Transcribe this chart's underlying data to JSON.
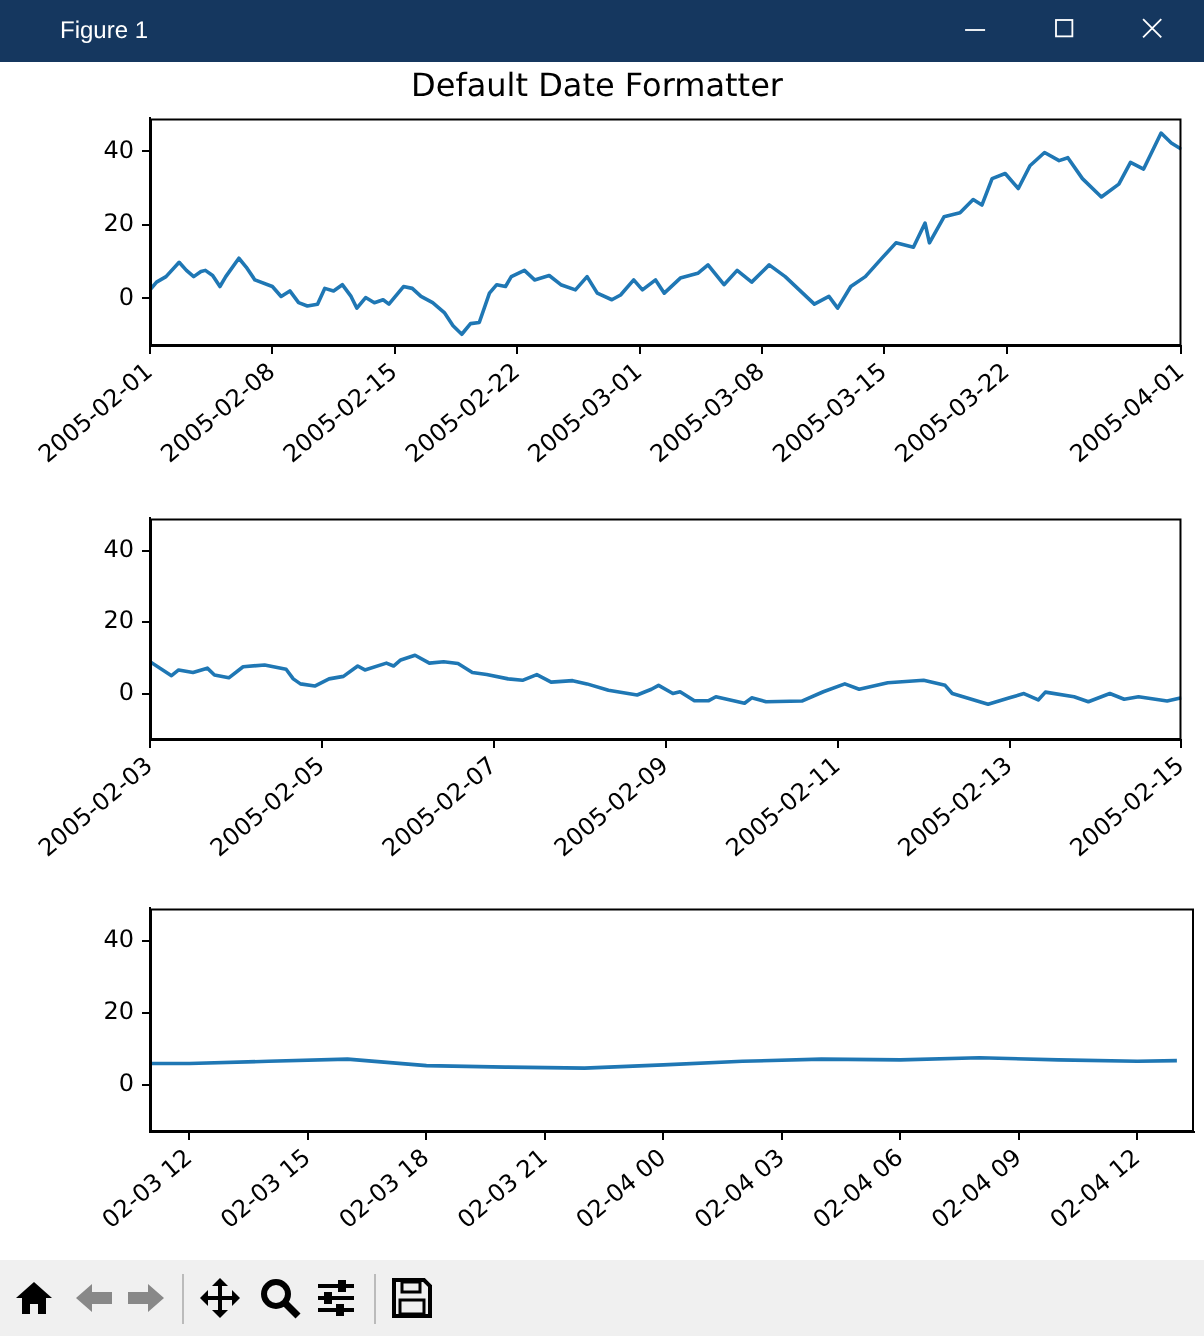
{
  "chart_data": [
    {
      "type": "line",
      "title": "Default Date Formatter",
      "annotations": [
        "Figure 1"
      ],
      "x": [
        "2005-02-01T00:00",
        "2005-02-01T09:00",
        "2005-02-01T22:00",
        "2005-02-02T16:00",
        "2005-02-03T02:00",
        "2005-02-03T12:00",
        "2005-02-03T22:00",
        "2005-02-04T04:00",
        "2005-02-04T14:00",
        "2005-02-05T00:00",
        "2005-02-05T08:00",
        "2005-02-06T02:00",
        "2005-02-06T12:00",
        "2005-02-07T00:00",
        "2005-02-08T00:00",
        "2005-02-08T12:00",
        "2005-02-09T00:00",
        "2005-02-09T12:00",
        "2005-02-10T00:00",
        "2005-02-10T14:00",
        "2005-02-11T00:00",
        "2005-02-11T12:00",
        "2005-02-12T00:00",
        "2005-02-12T12:00",
        "2005-02-12T20:00",
        "2005-02-13T08:00",
        "2005-02-13T20:00",
        "2005-02-14T08:00",
        "2005-02-14T16:00",
        "2005-02-15T12:00",
        "2005-02-16T00:00",
        "2005-02-16T12:00",
        "2005-02-17T04:00",
        "2005-02-17T20:00",
        "2005-02-18T08:00",
        "2005-02-18T20:00",
        "2005-02-19T08:00",
        "2005-02-19T20:00",
        "2005-02-20T10:00",
        "2005-02-20T20:00",
        "2005-02-21T08:00",
        "2005-02-21T16:00",
        "2005-02-22T10:00",
        "2005-02-23T00:00",
        "2005-02-23T20:00",
        "2005-02-24T12:00",
        "2005-02-25T08:00",
        "2005-02-26T00:00",
        "2005-02-26T14:00",
        "2005-02-27T10:00",
        "2005-02-27T22:00",
        "2005-02-28T16:00",
        "2005-03-01T04:00",
        "2005-03-01T22:00",
        "2005-03-02T10:00",
        "2005-03-03T08:00",
        "2005-03-04T08:00",
        "2005-03-04T22:00",
        "2005-03-05T20:00",
        "2005-03-06T14:00",
        "2005-03-07T10:00",
        "2005-03-08T10:00",
        "2005-03-09T08:00",
        "2005-03-10T08:00",
        "2005-03-11T00:00",
        "2005-03-11T20:00",
        "2005-03-12T08:00",
        "2005-03-13T02:00",
        "2005-03-13T22:00",
        "2005-03-14T22:00",
        "2005-03-15T16:00",
        "2005-03-16T16:00",
        "2005-03-17T08:00",
        "2005-03-17T14:00",
        "2005-03-18T10:00",
        "2005-03-19T08:00",
        "2005-03-20T02:00",
        "2005-03-20T14:00",
        "2005-03-21T04:00",
        "2005-03-21T22:00",
        "2005-03-22T16:00",
        "2005-03-23T08:00",
        "2005-03-24T04:00",
        "2005-03-25T00:00",
        "2005-03-25T12:00",
        "2005-03-26T08:00",
        "2005-03-27T10:00",
        "2005-03-28T10:00",
        "2005-03-29T02:00",
        "2005-03-29T20:00",
        "2005-03-30T20:00",
        "2005-03-31T10:00",
        "2005-04-01T00:00"
      ],
      "series": [
        {
          "color": "#1f77b4",
          "values": [
            2.3,
            4.4,
            5.9,
            9.8,
            7.6,
            5.9,
            7.3,
            7.6,
            6.2,
            3.2,
            5.9,
            10.9,
            8.5,
            5,
            3.2,
            0.5,
            2,
            -1.2,
            -2.1,
            -1.6,
            2.7,
            2,
            3.7,
            0.5,
            -2.7,
            0.2,
            -1.2,
            -0.4,
            -1.6,
            3.2,
            2.7,
            0.5,
            -1.2,
            -3.9,
            -7.5,
            -9.8,
            -6.9,
            -6.6,
            1.4,
            3.7,
            3.2,
            5.9,
            7.6,
            5,
            6.2,
            3.7,
            2.3,
            5.9,
            1.4,
            -0.4,
            0.9,
            5,
            2.3,
            5,
            1.4,
            5.5,
            6.8,
            9.1,
            3.7,
            7.6,
            4.4,
            9.1,
            5.9,
            1.4,
            -1.6,
            0.5,
            -2.7,
            3.2,
            5.9,
            11.2,
            15.1,
            13.9,
            20.5,
            15.1,
            22.2,
            23.3,
            26.9,
            25.4,
            32.6,
            34,
            29.9,
            36.1,
            39.7,
            37.5,
            38.3,
            32.6,
            27.6,
            31.1,
            37,
            35.2,
            45,
            42.3,
            40.6
          ]
        }
      ],
      "xlim": [
        "2005-02-01",
        "2005-04-01"
      ],
      "xticks": [
        "2005-02-01",
        "2005-02-08",
        "2005-02-15",
        "2005-02-22",
        "2005-03-01",
        "2005-03-08",
        "2005-03-15",
        "2005-03-22",
        "2005-04-01"
      ],
      "ylim": [
        -13,
        49
      ],
      "yticks": [
        0,
        20,
        40
      ]
    },
    {
      "type": "line",
      "x": [
        "2005-02-03T00:00",
        "2005-02-03T06:00",
        "2005-02-03T08:00",
        "2005-02-03T12:00",
        "2005-02-03T16:00",
        "2005-02-03T18:00",
        "2005-02-03T22:00",
        "2005-02-04T02:00",
        "2005-02-04T08:00",
        "2005-02-04T14:00",
        "2005-02-04T16:00",
        "2005-02-04T18:00",
        "2005-02-04T22:00",
        "2005-02-05T02:00",
        "2005-02-05T06:00",
        "2005-02-05T10:00",
        "2005-02-05T12:00",
        "2005-02-05T18:00",
        "2005-02-05T20:00",
        "2005-02-05T22:00",
        "2005-02-06T02:00",
        "2005-02-06T06:00",
        "2005-02-06T10:00",
        "2005-02-06T14:00",
        "2005-02-06T18:00",
        "2005-02-06T22:00",
        "2005-02-07T04:00",
        "2005-02-07T08:00",
        "2005-02-07T12:00",
        "2005-02-07T16:00",
        "2005-02-07T22:00",
        "2005-02-08T02:00",
        "2005-02-08T08:00",
        "2005-02-08T16:00",
        "2005-02-08T20:00",
        "2005-02-08T22:00",
        "2005-02-09T02:00",
        "2005-02-09T04:00",
        "2005-02-09T08:00",
        "2005-02-09T12:00",
        "2005-02-09T14:00",
        "2005-02-09T22:00",
        "2005-02-10T00:00",
        "2005-02-10T04:00",
        "2005-02-10T14:00",
        "2005-02-10T20:00",
        "2005-02-11T02:00",
        "2005-02-11T06:00",
        "2005-02-11T14:00",
        "2005-02-12T00:00",
        "2005-02-12T06:00",
        "2005-02-12T08:00",
        "2005-02-12T18:00",
        "2005-02-13T00:00",
        "2005-02-13T04:00",
        "2005-02-13T08:00",
        "2005-02-13T10:00",
        "2005-02-13T18:00",
        "2005-02-13T22:00",
        "2005-02-14T04:00",
        "2005-02-14T08:00",
        "2005-02-14T12:00",
        "2005-02-14T20:00",
        "2005-02-15T00:00"
      ],
      "series": [
        {
          "color": "#1f77b4",
          "values": [
            8.9,
            5,
            6.6,
            5.9,
            7.1,
            5.2,
            4.4,
            7.5,
            8,
            6.8,
            4.1,
            2.7,
            2.1,
            4.1,
            4.8,
            7.7,
            6.6,
            8.5,
            7.7,
            9.4,
            10.7,
            8.5,
            8.9,
            8.4,
            5.9,
            5.3,
            4.1,
            3.7,
            5.3,
            3.2,
            3.6,
            2.7,
            0.9,
            -0.4,
            1.2,
            2.3,
            0,
            0.5,
            -2,
            -2,
            -0.9,
            -2.7,
            -1.2,
            -2.3,
            -2.1,
            0.5,
            2.7,
            1.2,
            3,
            3.7,
            2.3,
            0,
            -3,
            -1.2,
            0,
            -1.8,
            0.4,
            -0.9,
            -2.3,
            0,
            -1.6,
            -0.9,
            -2.1,
            -1.2
          ]
        }
      ],
      "xlim": [
        "2005-02-03",
        "2005-02-15"
      ],
      "xticks": [
        "2005-02-03",
        "2005-02-05",
        "2005-02-07",
        "2005-02-09",
        "2005-02-11",
        "2005-02-13",
        "2005-02-15"
      ],
      "ylim": [
        -13,
        49
      ],
      "yticks": [
        0,
        20,
        40
      ]
    },
    {
      "type": "line",
      "x": [
        "2005-02-03T11:00",
        "2005-02-03T12:00",
        "2005-02-03T14:00",
        "2005-02-03T16:00",
        "2005-02-03T18:00",
        "2005-02-03T20:00",
        "2005-02-03T22:00",
        "2005-02-04T00:00",
        "2005-02-04T02:00",
        "2005-02-04T04:00",
        "2005-02-04T06:00",
        "2005-02-04T08:00",
        "2005-02-04T10:00",
        "2005-02-04T12:00",
        "2005-02-04T13:00"
      ],
      "series": [
        {
          "color": "#1f77b4",
          "values": [
            6,
            6,
            6.6,
            7.2,
            5.4,
            5,
            4.7,
            5.6,
            6.6,
            7.2,
            7,
            7.6,
            7,
            6.6,
            6.8
          ]
        }
      ],
      "xlim": [
        "2005-02-03T11:00",
        "2005-02-04T13:26"
      ],
      "xticks": [
        {
          "value": "2005-02-03T12:00",
          "label": "02-03 12"
        },
        {
          "value": "2005-02-03T15:00",
          "label": "02-03 15"
        },
        {
          "value": "2005-02-03T18:00",
          "label": "02-03 18"
        },
        {
          "value": "2005-02-03T21:00",
          "label": "02-03 21"
        },
        {
          "value": "2005-02-04T00:00",
          "label": "02-04 00"
        },
        {
          "value": "2005-02-04T03:00",
          "label": "02-04 03"
        },
        {
          "value": "2005-02-04T06:00",
          "label": "02-04 06"
        },
        {
          "value": "2005-02-04T09:00",
          "label": "02-04 09"
        },
        {
          "value": "2005-02-04T12:00",
          "label": "02-04 12"
        }
      ],
      "ylim": [
        -13,
        49
      ],
      "yticks": [
        0,
        20,
        40
      ]
    }
  ]
}
